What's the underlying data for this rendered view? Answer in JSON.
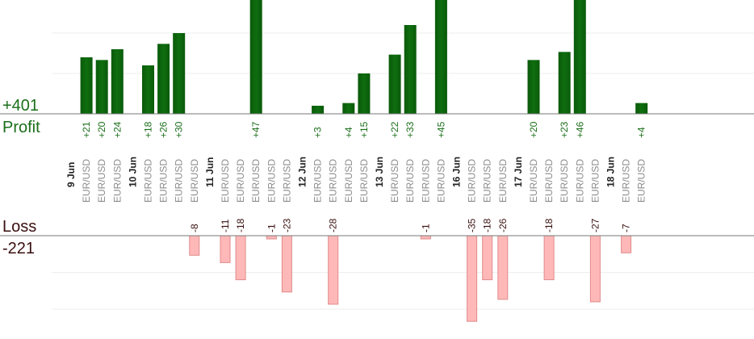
{
  "colors": {
    "profit_text": "#1a6e1a",
    "loss_text": "#3a0f0f",
    "profit_bar": "#0f6e0f",
    "loss_bar": "#ffb8b8",
    "loss_bar_stroke": "#e08a8a",
    "grid": "#eeeeee",
    "axis": "#777777"
  },
  "profit": {
    "total": "+401",
    "label": "Profit"
  },
  "loss": {
    "total": "-221",
    "label": "Loss"
  },
  "chart_data": {
    "type": "bar",
    "columns": [
      {
        "date": "9 Jun"
      },
      {
        "symbol": "EUR/USD",
        "profit": 21
      },
      {
        "symbol": "EUR/USD",
        "profit": 20
      },
      {
        "symbol": "EUR/USD",
        "profit": 24
      },
      {
        "date": "10 Jun"
      },
      {
        "symbol": "EUR/USD",
        "profit": 18
      },
      {
        "symbol": "EUR/USD",
        "profit": 26
      },
      {
        "symbol": "EUR/USD",
        "profit": 30
      },
      {
        "symbol": "EUR/USD",
        "loss": -8
      },
      {
        "date": "11 Jun"
      },
      {
        "symbol": "EUR/USD",
        "loss": -11
      },
      {
        "symbol": "EUR/USD",
        "loss": -18
      },
      {
        "symbol": "EUR/USD",
        "profit": 47
      },
      {
        "symbol": "EUR/USD",
        "loss": -1
      },
      {
        "symbol": "EUR/USD",
        "loss": -23
      },
      {
        "date": "12 Jun"
      },
      {
        "symbol": "EUR/USD",
        "profit": 3
      },
      {
        "symbol": "EUR/USD",
        "loss": -28
      },
      {
        "symbol": "EUR/USD",
        "profit": 4
      },
      {
        "symbol": "EUR/USD",
        "profit": 15
      },
      {
        "date": "13 Jun"
      },
      {
        "symbol": "EUR/USD",
        "profit": 22
      },
      {
        "symbol": "EUR/USD",
        "profit": 33
      },
      {
        "symbol": "EUR/USD",
        "loss": -1
      },
      {
        "symbol": "EUR/USD",
        "profit": 45
      },
      {
        "date": "16 Jun"
      },
      {
        "symbol": "EUR/USD",
        "loss": -35
      },
      {
        "symbol": "EUR/USD",
        "loss": -18
      },
      {
        "symbol": "EUR/USD",
        "loss": -26
      },
      {
        "date": "17 Jun"
      },
      {
        "symbol": "EUR/USD",
        "profit": 20
      },
      {
        "symbol": "EUR/USD",
        "loss": -18
      },
      {
        "symbol": "EUR/USD",
        "profit": 23
      },
      {
        "symbol": "EUR/USD",
        "profit": 46
      },
      {
        "symbol": "EUR/USD",
        "loss": -27
      },
      {
        "date": "18 Jun"
      },
      {
        "symbol": "EUR/USD",
        "loss": -7
      },
      {
        "symbol": "EUR/USD",
        "profit": 4
      }
    ],
    "profit_ylim": [
      0,
      30
    ],
    "loss_ylim": [
      -30,
      0
    ],
    "grid": true
  }
}
